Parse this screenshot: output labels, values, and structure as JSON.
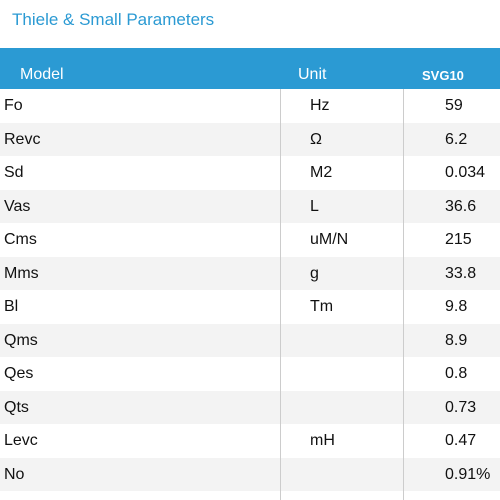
{
  "header": {
    "title": "Thiele & Small Parameters"
  },
  "table": {
    "columns": [
      "Model",
      "Unit",
      "SVG10"
    ],
    "rows": [
      [
        "Fo",
        "Hz",
        "59"
      ],
      [
        "Revc",
        "Ω",
        "6.2"
      ],
      [
        "Sd",
        "M2",
        "0.034"
      ],
      [
        "Vas",
        "L",
        "36.6"
      ],
      [
        "Cms",
        "uM/N",
        "215"
      ],
      [
        "Mms",
        "g",
        "33.8"
      ],
      [
        "Bl",
        "Tm",
        "9.8"
      ],
      [
        "Qms",
        null,
        "8.9"
      ],
      [
        "Qes",
        null,
        "0.8"
      ],
      [
        "Qts",
        null,
        "0.73"
      ],
      [
        "Levc",
        "mH",
        "0.47"
      ],
      [
        "No",
        null,
        "0.91%"
      ]
    ]
  }
}
